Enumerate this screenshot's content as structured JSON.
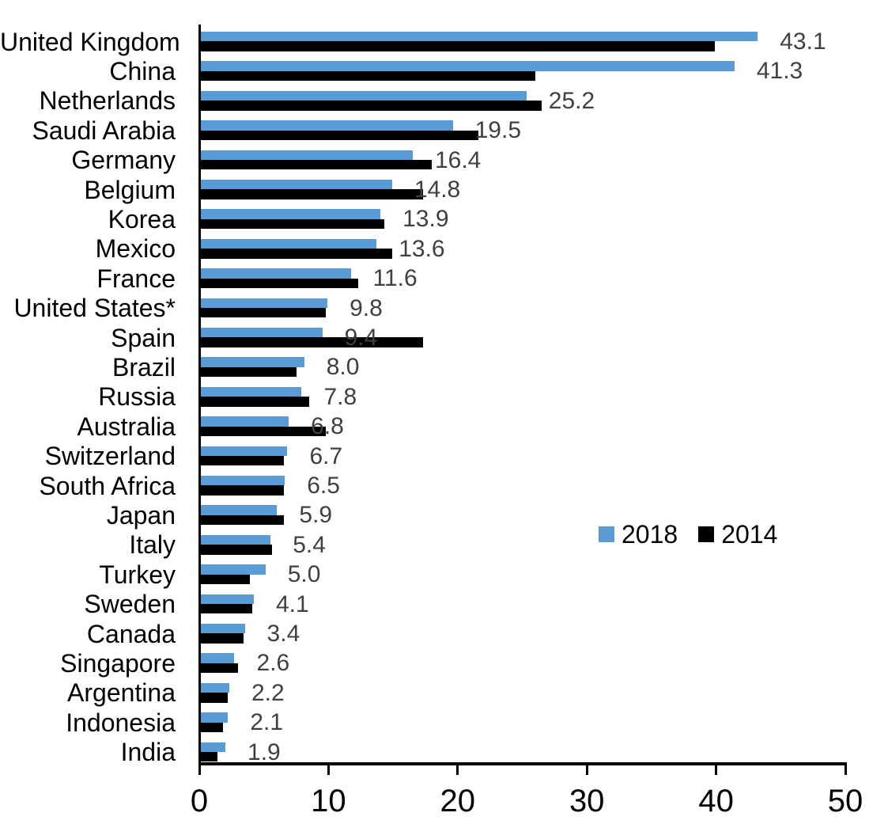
{
  "chart_data": {
    "type": "bar",
    "orientation": "horizontal",
    "title": "",
    "xlabel": "",
    "ylabel": "",
    "xlim": [
      0,
      50
    ],
    "x_ticks": [
      "0",
      "10",
      "20",
      "30",
      "40",
      "50"
    ],
    "grid": false,
    "legend_position": "middle-right",
    "categories": [
      "United Kingdom",
      "China",
      "Netherlands",
      "Saudi Arabia",
      "Germany",
      "Belgium",
      "Korea",
      "Mexico",
      "France",
      "United States*",
      "Spain",
      "Brazil",
      "Russia",
      "Australia",
      "Switzerland",
      "South Africa",
      "Japan",
      "Italy",
      "Turkey",
      "Sweden",
      "Canada",
      "Singapore",
      "Argentina",
      "Indonesia",
      "India"
    ],
    "series": [
      {
        "name": "2018",
        "color": "#5B9BD5",
        "values": [
          43.1,
          41.3,
          25.2,
          19.5,
          16.4,
          14.8,
          13.9,
          13.6,
          11.6,
          9.8,
          9.4,
          8.0,
          7.8,
          6.8,
          6.7,
          6.5,
          5.9,
          5.4,
          5.0,
          4.1,
          3.4,
          2.6,
          2.2,
          2.1,
          1.9
        ]
      },
      {
        "name": "2014",
        "color": "#000000",
        "values": [
          39.8,
          25.9,
          26.4,
          21.5,
          17.9,
          17.2,
          14.2,
          14.8,
          12.2,
          9.7,
          17.2,
          7.4,
          8.4,
          9.7,
          6.4,
          6.4,
          6.4,
          5.5,
          3.8,
          4.0,
          3.3,
          2.9,
          2.1,
          1.7,
          1.3
        ]
      }
    ],
    "value_labels": [
      "43.1",
      "41.3",
      "25.2",
      "19.5",
      "16.4",
      "14.8",
      "13.9",
      "13.6",
      "11.6",
      "9.8",
      "9.4",
      "8.0",
      "7.8",
      "6.8",
      "6.7",
      "6.5",
      "5.9",
      "5.4",
      "5.0",
      "4.1",
      "3.4",
      "2.6",
      "2.2",
      "2.1",
      "1.9"
    ],
    "value_label_color": "#404040",
    "axis_color": "#000000"
  }
}
